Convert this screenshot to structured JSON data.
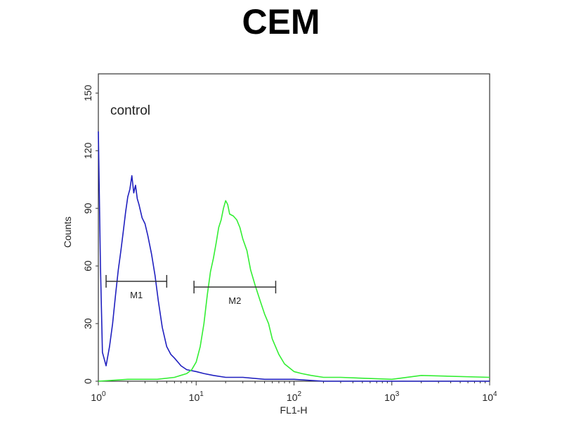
{
  "chart_data": {
    "type": "line",
    "title": "CEM",
    "xlabel": "FL1-H",
    "ylabel": "Counts",
    "x_scale": "log",
    "xlim": [
      1,
      10000
    ],
    "ylim": [
      0,
      160
    ],
    "x_ticks": [
      {
        "value": 1,
        "base": "10",
        "exp": "0"
      },
      {
        "value": 10,
        "base": "10",
        "exp": "1"
      },
      {
        "value": 100,
        "base": "10",
        "exp": "2"
      },
      {
        "value": 1000,
        "base": "10",
        "exp": "3"
      },
      {
        "value": 10000,
        "base": "10",
        "exp": "4"
      }
    ],
    "y_ticks": [
      0,
      30,
      60,
      90,
      120,
      150
    ],
    "grid": false,
    "annotation": "control",
    "markers": [
      {
        "label": "M1",
        "x_start": 1.2,
        "x_end": 5.0,
        "y": 52
      },
      {
        "label": "M2",
        "x_start": 9.5,
        "x_end": 65,
        "y": 49
      }
    ],
    "series": [
      {
        "color": "#1f1fbf",
        "x": [
          1,
          1.05,
          1.1,
          1.2,
          1.3,
          1.4,
          1.5,
          1.6,
          1.7,
          1.8,
          1.9,
          2.0,
          2.1,
          2.2,
          2.3,
          2.4,
          2.5,
          2.6,
          2.8,
          3.0,
          3.2,
          3.5,
          3.8,
          4.1,
          4.5,
          5.0,
          5.5,
          6.0,
          7.0,
          8.0,
          10,
          12,
          15,
          20,
          30,
          50,
          100,
          200,
          1000,
          10000
        ],
        "y": [
          130,
          60,
          15,
          8,
          18,
          30,
          45,
          58,
          68,
          78,
          88,
          96,
          100,
          107,
          98,
          102,
          95,
          92,
          85,
          82,
          76,
          66,
          55,
          42,
          28,
          18,
          14,
          12,
          8,
          6,
          5,
          4,
          3,
          2,
          2,
          1,
          1,
          0,
          0,
          0
        ]
      },
      {
        "color": "#33ee33",
        "x": [
          1,
          2,
          4,
          6,
          8,
          9,
          10,
          11,
          12,
          13,
          14,
          15,
          16,
          17,
          18,
          19,
          20,
          21,
          22,
          24,
          26,
          28,
          30,
          33,
          36,
          40,
          45,
          50,
          55,
          60,
          70,
          80,
          100,
          120,
          150,
          200,
          300,
          1000,
          2000,
          10000
        ],
        "y": [
          0,
          1,
          1,
          2,
          4,
          6,
          10,
          18,
          30,
          45,
          57,
          64,
          72,
          80,
          84,
          90,
          94,
          92,
          87,
          86,
          84,
          80,
          74,
          68,
          58,
          50,
          42,
          35,
          30,
          22,
          14,
          9,
          5,
          4,
          3,
          2,
          2,
          1,
          3,
          2
        ]
      }
    ]
  }
}
